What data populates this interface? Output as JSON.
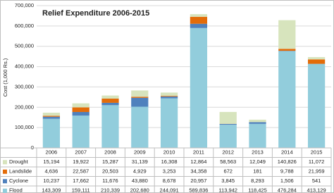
{
  "chart_data": {
    "type": "stacked-bar",
    "title": "Relief Expenditure 2006-2015",
    "y_label": "Cost (1,000 Rs.)",
    "categories": [
      "2006",
      "2007",
      "2008",
      "2009",
      "2010",
      "2011",
      "2012",
      "2013",
      "2014",
      "2015"
    ],
    "series": [
      {
        "name": "Drought",
        "color": "#d7e4bd",
        "values": [
          15194,
          19922,
          15287,
          31139,
          16308,
          12864,
          58563,
          12049,
          140826,
          11072
        ],
        "value_labels": [
          "15,194",
          "19,922",
          "15,287",
          "31,139",
          "16,308",
          "12,864",
          "58,563",
          "12,049",
          "140,826",
          "11,072"
        ]
      },
      {
        "name": "Landslide",
        "color": "#e36c09",
        "values": [
          4636,
          22587,
          20503,
          4929,
          3253,
          34358,
          672,
          181,
          9788,
          21959
        ],
        "value_labels": [
          "4,636",
          "22,587",
          "20,503",
          "4,929",
          "3,253",
          "34,358",
          "672",
          "181",
          "9,788",
          "21,959"
        ]
      },
      {
        "name": "Cyclone",
        "color": "#4f81bd",
        "values": [
          10237,
          17662,
          11676,
          43880,
          8678,
          20957,
          3845,
          8293,
          1506,
          541
        ],
        "value_labels": [
          "10,237",
          "17,662",
          "11,676",
          "43,880",
          "8,678",
          "20,957",
          "3,845",
          "8,293",
          "1,506",
          "541"
        ]
      },
      {
        "name": "Flood",
        "color": "#92cddc",
        "values": [
          143309,
          159111,
          210339,
          202680,
          244091,
          589836,
          113942,
          118425,
          476284,
          413129
        ],
        "value_labels": [
          "143,309",
          "159,111",
          "210,339",
          "202,680",
          "244,091",
          "589,836",
          "113,942",
          "118,425",
          "476,284",
          "413,129"
        ]
      }
    ],
    "ylim": [
      0,
      700000
    ],
    "yticks": [
      0,
      {
        "value": 100000,
        "label": "100,000"
      },
      {
        "value": 200000,
        "label": "200,000"
      },
      {
        "value": 300000,
        "label": "300,000"
      },
      {
        "value": 400000,
        "label": "400,000"
      },
      {
        "value": 500000,
        "label": "500,000"
      },
      {
        "value": 600000,
        "label": "600,000"
      },
      {
        "value": 700000,
        "label": "700,000"
      }
    ],
    "grid": true
  }
}
